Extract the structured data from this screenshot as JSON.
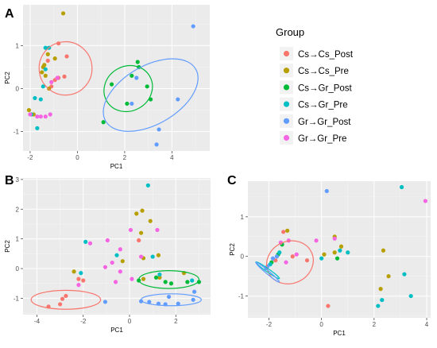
{
  "legend": {
    "title": "Group",
    "entries": [
      {
        "label": "Cs→Cs_Post",
        "color": "#f8766d"
      },
      {
        "label": "Cs→Cs_Pre",
        "color": "#b79f00"
      },
      {
        "label": "Cs→Gr_Post",
        "color": "#00ba38"
      },
      {
        "label": "Cs→Gr_Pre",
        "color": "#00bfc4"
      },
      {
        "label": "Gr→Gr_Post",
        "color": "#619cff"
      },
      {
        "label": "Gr→Gr_Pre",
        "color": "#f564e3"
      }
    ]
  },
  "chart_data": [
    {
      "panel": "A",
      "type": "scatter",
      "xlabel": "PC1",
      "ylabel": "PC2",
      "xlim": [
        -2.3,
        5.6
      ],
      "ylim": [
        -1.45,
        1.95
      ],
      "xticks": [
        -2,
        0,
        2,
        4
      ],
      "yticks": [
        -1,
        0,
        1
      ],
      "grid": true,
      "series": [
        {
          "name": "Cs→Cs_Post",
          "color": "#f8766d",
          "points": [
            [
              -0.8,
              1.05
            ],
            [
              -0.45,
              0.75
            ],
            [
              -1.25,
              0.65
            ],
            [
              -0.55,
              0.28
            ],
            [
              -0.8,
              0.25
            ],
            [
              -0.95,
              0.2
            ],
            [
              -1.1,
              0.05
            ]
          ]
        },
        {
          "name": "Cs→Cs_Pre",
          "color": "#b79f00",
          "points": [
            [
              -0.6,
              1.75
            ],
            [
              -1.25,
              0.8
            ],
            [
              -0.95,
              0.7
            ],
            [
              -1.4,
              0.55
            ],
            [
              -1.45,
              0.5
            ],
            [
              -1.5,
              0.38
            ],
            [
              -1.35,
              0.3
            ],
            [
              -1.2,
              0.0
            ],
            [
              -2.05,
              -0.5
            ],
            [
              -1.85,
              -0.6
            ]
          ]
        },
        {
          "name": "Cs→Gr_Post",
          "color": "#00ba38",
          "points": [
            [
              2.55,
              0.62
            ],
            [
              2.3,
              0.3
            ],
            [
              1.45,
              0.1
            ],
            [
              2.95,
              0.05
            ],
            [
              2.1,
              -0.35
            ],
            [
              1.1,
              -0.78
            ],
            [
              2.6,
              0.5
            ],
            [
              3.1,
              -0.25
            ]
          ]
        },
        {
          "name": "Cs→Gr_Pre",
          "color": "#00bfc4",
          "points": [
            [
              -1.35,
              0.95
            ],
            [
              -1.2,
              0.95
            ],
            [
              -1.35,
              0.45
            ],
            [
              -1.45,
              0.05
            ],
            [
              -1.8,
              -0.22
            ],
            [
              -1.55,
              -0.25
            ],
            [
              -1.95,
              -0.6
            ],
            [
              -1.7,
              -0.92
            ]
          ]
        },
        {
          "name": "Gr→Gr_Post",
          "color": "#619cff",
          "points": [
            [
              4.9,
              1.45
            ],
            [
              2.5,
              0.25
            ],
            [
              4.25,
              -0.25
            ],
            [
              2.3,
              -0.35
            ],
            [
              3.35,
              -1.3
            ],
            [
              3.45,
              -0.95
            ]
          ]
        },
        {
          "name": "Gr→Gr_Pre",
          "color": "#f564e3",
          "points": [
            [
              -0.85,
              0.25
            ],
            [
              -1.1,
              0.15
            ],
            [
              -2.0,
              -0.6
            ],
            [
              -1.55,
              -0.65
            ],
            [
              -1.7,
              -0.65
            ],
            [
              -1.15,
              -0.6
            ],
            [
              -1.35,
              -0.65
            ]
          ]
        }
      ],
      "ellipses": [
        {
          "group": "Cs→Cs_Post",
          "center": [
            -0.5,
            0.47
          ],
          "rx": 1.12,
          "ry": 0.62,
          "angle_deg": 5
        },
        {
          "group": "Cs→Gr_Post",
          "center": [
            2.15,
            0.0
          ],
          "rx": 1.05,
          "ry": 0.52,
          "angle_deg": 30
        },
        {
          "group": "Gr→Gr_Post",
          "center": [
            3.1,
            -0.15
          ],
          "rx": 2.2,
          "ry": 0.68,
          "angle_deg": 30
        }
      ]
    },
    {
      "panel": "B",
      "type": "scatter",
      "xlabel": "PC1",
      "ylabel": "PC2",
      "xlim": [
        -4.6,
        3.5
      ],
      "ylim": [
        -1.55,
        3.05
      ],
      "xticks": [
        -4,
        -2,
        0,
        2
      ],
      "yticks": [
        -1,
        0,
        1,
        2,
        3
      ],
      "grid": true,
      "series": [
        {
          "name": "Cs→Cs_Post",
          "color": "#f8766d",
          "points": [
            [
              -3.5,
              -1.28
            ],
            [
              -3.0,
              -1.2
            ],
            [
              -2.75,
              -0.92
            ],
            [
              -2.9,
              -1.02
            ],
            [
              -2.2,
              -0.35
            ],
            [
              -2.0,
              -0.4
            ],
            [
              0.4,
              0.95
            ]
          ]
        },
        {
          "name": "Cs→Cs_Pre",
          "color": "#b79f00",
          "points": [
            [
              0.3,
              1.85
            ],
            [
              0.55,
              1.95
            ],
            [
              0.5,
              1.2
            ],
            [
              0.9,
              1.6
            ],
            [
              0.6,
              0.35
            ],
            [
              1.3,
              -0.3
            ],
            [
              0.6,
              -0.35
            ],
            [
              2.35,
              -0.15
            ],
            [
              1.25,
              0.45
            ],
            [
              -2.4,
              -0.1
            ],
            [
              -0.3,
              0.25
            ]
          ]
        },
        {
          "name": "Cs→Gr_Post",
          "color": "#00ba38",
          "points": [
            [
              1.15,
              -0.3
            ],
            [
              1.55,
              -0.45
            ],
            [
              2.5,
              -0.45
            ],
            [
              3.0,
              -0.45
            ],
            [
              0.4,
              -0.4
            ],
            [
              1.8,
              -0.5
            ]
          ]
        },
        {
          "name": "Cs→Gr_Pre",
          "color": "#00bfc4",
          "points": [
            [
              0.8,
              2.8
            ],
            [
              -1.9,
              0.9
            ],
            [
              -0.55,
              0.45
            ],
            [
              1.0,
              0.4
            ],
            [
              -2.1,
              -0.15
            ],
            [
              2.7,
              -0.4
            ],
            [
              1.3,
              -0.2
            ]
          ]
        },
        {
          "name": "Gr→Gr_Post",
          "color": "#619cff",
          "points": [
            [
              -1.05,
              -1.12
            ],
            [
              0.5,
              -1.1
            ],
            [
              1.25,
              -1.18
            ],
            [
              1.7,
              -0.95
            ],
            [
              2.1,
              -1.18
            ],
            [
              2.75,
              -1.05
            ],
            [
              2.8,
              -0.78
            ],
            [
              0.85,
              -1.12
            ],
            [
              1.55,
              -1.2
            ]
          ]
        },
        {
          "name": "Gr→Gr_Pre",
          "color": "#f564e3",
          "points": [
            [
              1.2,
              1.3
            ],
            [
              -0.4,
              0.65
            ],
            [
              -0.75,
              0.2
            ],
            [
              -0.4,
              -0.1
            ],
            [
              0.05,
              1.3
            ],
            [
              -0.95,
              0.95
            ],
            [
              -1.05,
              0.05
            ],
            [
              0.5,
              0.4
            ],
            [
              0.1,
              -0.35
            ],
            [
              -0.6,
              -0.45
            ],
            [
              -2.2,
              -0.55
            ],
            [
              -1.7,
              0.85
            ]
          ]
        }
      ],
      "ellipses": [
        {
          "group": "Cs→Cs_Post",
          "center": [
            -2.75,
            -1.05
          ],
          "rx": 1.5,
          "ry": 0.32,
          "angle_deg": 0
        },
        {
          "group": "Cs→Gr_Post",
          "center": [
            1.7,
            -0.37
          ],
          "rx": 1.3,
          "ry": 0.3,
          "angle_deg": 0
        },
        {
          "group": "Gr→Gr_Post",
          "center": [
            1.8,
            -1.05
          ],
          "rx": 1.3,
          "ry": 0.2,
          "angle_deg": 0
        }
      ]
    },
    {
      "panel": "C",
      "type": "scatter",
      "xlabel": "PC1",
      "ylabel": "PC2",
      "xlim": [
        -2.8,
        4.15
      ],
      "ylim": [
        -1.55,
        1.9
      ],
      "xticks": [
        -2,
        0,
        2,
        4
      ],
      "yticks": [
        -1,
        0,
        1
      ],
      "grid": true,
      "series": [
        {
          "name": "Cs→Cs_Post",
          "color": "#f8766d",
          "points": [
            [
              -1.45,
              0.62
            ],
            [
              -1.1,
              0.0
            ],
            [
              -1.75,
              -0.1
            ],
            [
              0.25,
              -1.25
            ],
            [
              -0.55,
              -0.1
            ]
          ]
        },
        {
          "name": "Cs→Cs_Pre",
          "color": "#b79f00",
          "points": [
            [
              -1.3,
              0.65
            ],
            [
              0.5,
              0.5
            ],
            [
              0.1,
              0.05
            ],
            [
              0.75,
              0.25
            ],
            [
              2.35,
              0.15
            ],
            [
              2.55,
              -0.5
            ],
            [
              2.25,
              -0.82
            ],
            [
              0.5,
              0.1
            ]
          ]
        },
        {
          "name": "Cs→Gr_Post",
          "color": "#00ba38",
          "points": [
            [
              -1.5,
              0.3
            ],
            [
              -1.65,
              0.05
            ],
            [
              0.6,
              -0.05
            ],
            [
              -1.9,
              -0.15
            ]
          ]
        },
        {
          "name": "Cs→Gr_Pre",
          "color": "#00bfc4",
          "points": [
            [
              3.05,
              1.75
            ],
            [
              -1.6,
              0.1
            ],
            [
              0.0,
              -0.05
            ],
            [
              0.7,
              0.15
            ],
            [
              1.0,
              0.1
            ],
            [
              3.15,
              -0.45
            ],
            [
              3.4,
              -1.0
            ],
            [
              2.3,
              -1.1
            ],
            [
              2.15,
              -1.25
            ],
            [
              -1.95,
              -0.2
            ]
          ]
        },
        {
          "name": "Gr→Gr_Post",
          "color": "#619cff",
          "points": [
            [
              0.2,
              1.65
            ],
            [
              -2.05,
              -0.25
            ],
            [
              -1.85,
              -0.05
            ],
            [
              -1.7,
              0.0
            ],
            [
              -2.1,
              -0.3
            ]
          ]
        },
        {
          "name": "Gr→Gr_Pre",
          "color": "#f564e3",
          "points": [
            [
              3.95,
              1.4
            ],
            [
              -1.55,
              0.35
            ],
            [
              -1.25,
              0.4
            ],
            [
              0.5,
              0.45
            ],
            [
              -0.95,
              0.05
            ],
            [
              -0.2,
              0.4
            ],
            [
              -1.35,
              -0.15
            ]
          ]
        }
      ],
      "ellipses": [
        {
          "group": "Cs→Cs_Post",
          "center": [
            -1.2,
            -0.15
          ],
          "rx": 0.8,
          "ry": 0.6,
          "angle_deg": -65
        },
        {
          "group": "Cs→Gr_Pre",
          "center": [
            -2.05,
            -0.35
          ],
          "rx": 0.55,
          "ry": 0.04,
          "angle_deg": -35
        },
        {
          "group": "Gr→Gr_Post",
          "center": [
            -2.05,
            -0.4
          ],
          "rx": 0.58,
          "ry": 0.04,
          "angle_deg": -40
        }
      ]
    }
  ]
}
